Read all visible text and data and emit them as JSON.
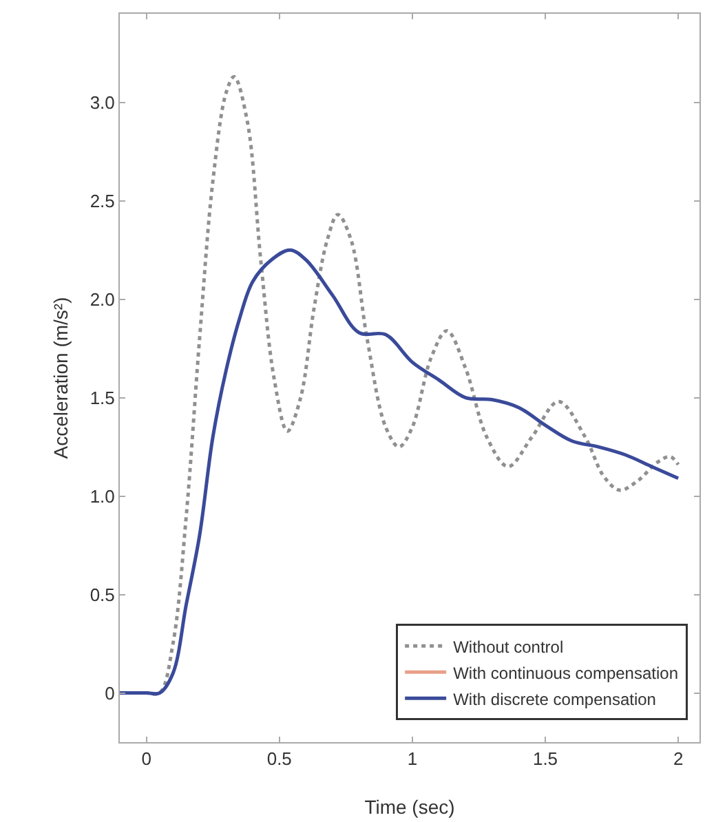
{
  "chart_data": {
    "type": "line",
    "xlabel": "Time (sec)",
    "ylabel": "Acceleration (m/s²)",
    "xlim": [
      -0.1,
      2.08
    ],
    "xticks": [
      0,
      0.5,
      1,
      1.5,
      2
    ],
    "ylim": [
      -0.25,
      3.45
    ],
    "yticks": [
      {
        "value": 0,
        "label": "0"
      },
      {
        "value": 0.5,
        "label": "0.5"
      },
      {
        "value": 1,
        "label": "1.0"
      },
      {
        "value": 1.5,
        "label": "1.5"
      },
      {
        "value": 2,
        "label": "2.0"
      },
      {
        "value": 2.5,
        "label": "2.5"
      },
      {
        "value": 3,
        "label": "3.0"
      }
    ],
    "grid": false,
    "legend": "bottom right",
    "marker": "none",
    "series": [
      {
        "name": "Without control",
        "color": "#909090",
        "line_style": "dotted",
        "x": [
          -0.1,
          0,
          0.05,
          0.1,
          0.15,
          0.2,
          0.25,
          0.3,
          0.33,
          0.38,
          0.43,
          0.48,
          0.53,
          0.58,
          0.63,
          0.68,
          0.72,
          0.77,
          0.83,
          0.9,
          0.95,
          1.0,
          1.07,
          1.13,
          1.2,
          1.28,
          1.36,
          1.45,
          1.55,
          1.65,
          1.72,
          1.78,
          1.85,
          1.92,
          1.97,
          2.0
        ],
        "values": [
          0,
          0,
          0,
          0.25,
          0.9,
          1.8,
          2.6,
          3.05,
          3.13,
          2.9,
          2.2,
          1.6,
          1.33,
          1.5,
          1.95,
          2.3,
          2.43,
          2.3,
          1.8,
          1.35,
          1.25,
          1.35,
          1.7,
          1.84,
          1.65,
          1.3,
          1.15,
          1.3,
          1.48,
          1.3,
          1.1,
          1.03,
          1.08,
          1.17,
          1.2,
          1.16
        ]
      },
      {
        "name": "With continuous compensation",
        "color": "#e8a088",
        "line_style": "solid"
      },
      {
        "name": "With discrete compensation",
        "color": "#3a4a9a",
        "line_style": "solid",
        "x": [
          -0.1,
          0,
          0.05,
          0.1,
          0.15,
          0.2,
          0.25,
          0.3,
          0.35,
          0.4,
          0.47,
          0.54,
          0.6,
          0.7,
          0.8,
          0.9,
          1.0,
          1.1,
          1.2,
          1.3,
          1.4,
          1.5,
          1.6,
          1.7,
          1.8,
          1.9,
          2.0
        ],
        "values": [
          0,
          0,
          0,
          0.1,
          0.45,
          0.8,
          1.3,
          1.64,
          1.9,
          2.09,
          2.2,
          2.25,
          2.2,
          2.02,
          1.83,
          1.82,
          1.68,
          1.59,
          1.5,
          1.49,
          1.45,
          1.36,
          1.28,
          1.25,
          1.21,
          1.15,
          1.09
        ]
      }
    ]
  }
}
